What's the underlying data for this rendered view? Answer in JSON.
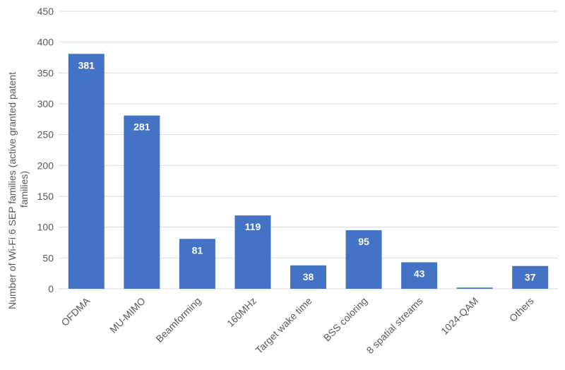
{
  "chart_data": {
    "type": "bar",
    "categories": [
      "OFDMA",
      "MU-MIMO",
      "Beamforming",
      "160MHz",
      "Target wake time",
      "BSS coloring",
      "8 spatial streams",
      "1024-QAM",
      "Others"
    ],
    "values": [
      381,
      281,
      81,
      119,
      38,
      95,
      43,
      2,
      37
    ],
    "data_labels": [
      "381",
      "281",
      "81",
      "119",
      "38",
      "95",
      "43",
      "",
      "37"
    ],
    "title": "",
    "xlabel": "",
    "ylabel_lines": [
      "Number of Wi-Fi 6 SEP families (active granted patent",
      "families)"
    ],
    "ylim": [
      0,
      450
    ],
    "yticks": [
      0,
      50,
      100,
      150,
      200,
      250,
      300,
      350,
      400,
      450
    ],
    "grid": true,
    "legend": "none",
    "colors": {
      "bar": "#4472C4",
      "grid": "#D9D9D9",
      "text": "#595959",
      "label": "#FFFFFF"
    }
  }
}
